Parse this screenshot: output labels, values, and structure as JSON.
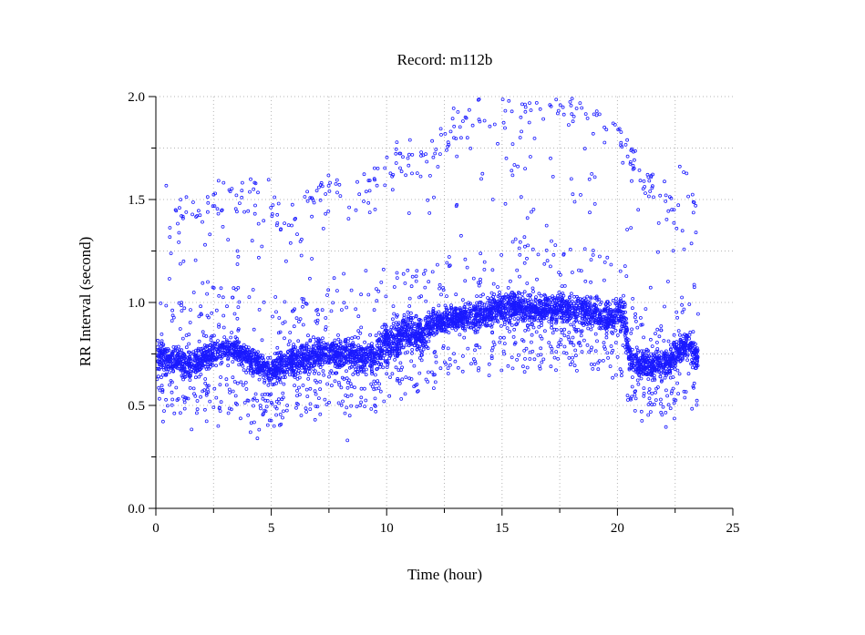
{
  "chart_data": {
    "type": "scatter",
    "title": "Record:  m112b",
    "xlabel": "Time (hour)",
    "ylabel": "RR Interval (second)",
    "xlim": [
      0,
      25
    ],
    "ylim": [
      0,
      2.0
    ],
    "xticks": [
      "0",
      "5",
      "10",
      "15",
      "20",
      "25"
    ],
    "yticks": [
      "0.0",
      "0.5",
      "1.0",
      "1.5",
      "2.0"
    ],
    "grid": true,
    "marker": "open-circle",
    "color": "#1a1aff",
    "series": [
      {
        "baseline_trend": {
          "x": [
            0.0,
            0.5,
            1.0,
            1.5,
            2.0,
            2.5,
            3.0,
            3.5,
            4.0,
            4.5,
            5.0,
            5.5,
            6.0,
            6.5,
            7.0,
            7.5,
            8.0,
            8.5,
            9.0,
            9.5,
            10.0,
            10.5,
            11.0,
            11.5,
            12.0,
            12.5,
            13.0,
            13.5,
            14.0,
            14.5,
            15.0,
            15.5,
            16.0,
            16.5,
            17.0,
            17.5,
            18.0,
            18.5,
            19.0,
            19.5,
            20.0,
            20.3,
            20.5,
            21.0,
            21.5,
            22.0,
            22.5,
            23.0,
            23.5
          ],
          "y": [
            0.74,
            0.72,
            0.71,
            0.7,
            0.72,
            0.76,
            0.77,
            0.77,
            0.72,
            0.7,
            0.66,
            0.69,
            0.72,
            0.73,
            0.74,
            0.75,
            0.74,
            0.75,
            0.73,
            0.74,
            0.8,
            0.83,
            0.86,
            0.83,
            0.9,
            0.91,
            0.92,
            0.93,
            0.94,
            0.96,
            0.97,
            0.98,
            0.97,
            0.96,
            0.97,
            0.97,
            0.96,
            0.96,
            0.94,
            0.91,
            0.95,
            0.93,
            0.74,
            0.7,
            0.7,
            0.7,
            0.74,
            0.8,
            0.74
          ],
          "spread": [
            0.07,
            0.07,
            0.07,
            0.07,
            0.06,
            0.06,
            0.05,
            0.05,
            0.06,
            0.06,
            0.06,
            0.07,
            0.07,
            0.07,
            0.07,
            0.07,
            0.07,
            0.07,
            0.07,
            0.08,
            0.08,
            0.08,
            0.08,
            0.08,
            0.06,
            0.06,
            0.06,
            0.06,
            0.07,
            0.07,
            0.07,
            0.07,
            0.07,
            0.07,
            0.07,
            0.07,
            0.07,
            0.07,
            0.07,
            0.07,
            0.07,
            0.07,
            0.07,
            0.07,
            0.07,
            0.07,
            0.07,
            0.06,
            0.06
          ]
        },
        "upper_band": {
          "x": [
            0.2,
            1.0,
            2.0,
            2.7,
            3.5,
            4.5,
            5.5,
            6.5,
            7.5,
            8.5,
            9.5,
            10.3,
            11.0,
            11.7,
            12.5,
            13.3,
            14.0,
            14.8,
            15.5,
            16.5,
            17.5,
            18.5,
            19.5,
            20.2,
            21.0,
            21.8,
            22.4,
            23.0,
            23.5
          ],
          "y": [
            1.52,
            1.4,
            1.42,
            1.5,
            1.52,
            1.55,
            1.35,
            1.5,
            1.55,
            1.55,
            1.58,
            1.65,
            1.72,
            1.68,
            1.78,
            1.88,
            1.93,
            1.92,
            1.93,
            1.94,
            1.97,
            1.93,
            1.88,
            1.78,
            1.6,
            1.5,
            1.45,
            1.6,
            1.5
          ]
        },
        "scattered_points": [
          [
            1.2,
            1.2
          ],
          [
            4.4,
            0.34
          ],
          [
            4.1,
            0.37
          ],
          [
            8.3,
            0.33
          ],
          [
            6.9,
            0.43
          ],
          [
            2.7,
            0.4
          ],
          [
            14.1,
            1.6
          ],
          [
            16.0,
            1.65
          ],
          [
            17.1,
            1.7
          ],
          [
            13.5,
            1.8
          ],
          [
            12.6,
            1.74
          ],
          [
            20.9,
            1.45
          ],
          [
            22.7,
            1.66
          ],
          [
            23.4,
            1.34
          ],
          [
            14.6,
            1.5
          ],
          [
            18.0,
            1.6
          ]
        ]
      }
    ]
  }
}
